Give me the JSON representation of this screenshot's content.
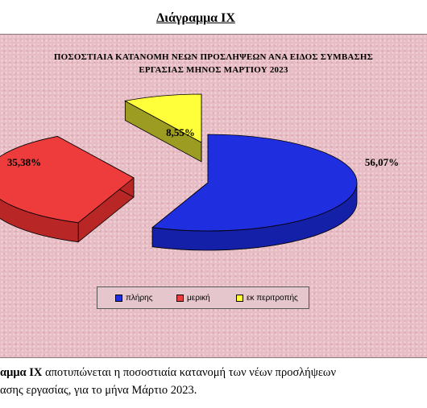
{
  "heading": "Διάγραμμα IX",
  "chart_data": {
    "type": "pie",
    "title_lines": [
      "ΠΟΣΟΣΤΙΑΙΑ  ΚΑΤΑΝΟΜΗ  ΝΕΩΝ  ΠΡΟΣΛΗΨΕΩΝ ΑΝΑ ΕΙΔΟΣ ΣΥΜΒΑΣΗΣ",
      "ΕΡΓΑΣΙΑΣ ΜΗΝΟΣ  ΜΑΡΤΙΟΥ 2023"
    ],
    "three_d": true,
    "exploded": true,
    "legend_position": "bottom",
    "slices": [
      {
        "name": "πλήρης",
        "value": 56.07,
        "label": "56,07%",
        "color": "#1f2fe0",
        "side_color": "#1420a8"
      },
      {
        "name": "μερική",
        "value": 35.38,
        "label": "35,38%",
        "color": "#ee3b3b",
        "side_color": "#b82626"
      },
      {
        "name": "εκ περιτροπής",
        "value": 8.55,
        "label": "8,55%",
        "color": "#ffff3a",
        "side_color": "#9c9c22"
      }
    ]
  },
  "caption": {
    "line1_bold": "αμμα  IX",
    "line1_rest": " αποτυπώνεται η ποσοστιαία κατανομή των νέων προσλήψεων",
    "line2": "ασης εργασίας,  για το μήνα Μάρτιο 2023."
  }
}
